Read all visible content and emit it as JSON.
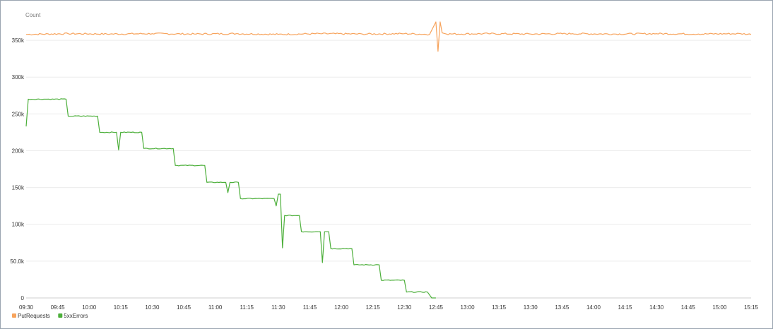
{
  "chart_data": {
    "type": "line",
    "ylabel": "Count",
    "ylim": [
      0,
      375000
    ],
    "y_ticks": [
      "0",
      "50.0k",
      "100k",
      "150k",
      "200k",
      "250k",
      "300k",
      "350k"
    ],
    "x_ticks": [
      "09:30",
      "09:45",
      "10:00",
      "10:15",
      "10:30",
      "10:45",
      "11:00",
      "11:15",
      "11:30",
      "11:45",
      "12:00",
      "12:15",
      "12:30",
      "12:45",
      "13:00",
      "13:15",
      "13:30",
      "13:45",
      "14:00",
      "14:15",
      "14:30",
      "14:45",
      "15:00",
      "15:15"
    ],
    "x_unit": "minutes",
    "grid": true,
    "legend_position": "bottom-left",
    "series": [
      {
        "name": "PutRequests",
        "color": "#f7a35c",
        "points": [
          [
            570,
            358000
          ],
          [
            590,
            359000
          ],
          [
            610,
            358500
          ],
          [
            630,
            359000
          ],
          [
            650,
            358500
          ],
          [
            670,
            359000
          ],
          [
            690,
            358000
          ],
          [
            710,
            359000
          ],
          [
            730,
            358500
          ],
          [
            750,
            359000
          ],
          [
            762,
            358000
          ],
          [
            765,
            375000
          ],
          [
            766,
            335000
          ],
          [
            767,
            375000
          ],
          [
            768,
            360000
          ],
          [
            770,
            358500
          ],
          [
            790,
            359000
          ],
          [
            810,
            358500
          ],
          [
            830,
            359000
          ],
          [
            850,
            358500
          ],
          [
            870,
            359000
          ],
          [
            890,
            358500
          ],
          [
            910,
            359000
          ],
          [
            915,
            358000
          ]
        ]
      },
      {
        "name": "5xxErrors",
        "color": "#4caf3a",
        "points": [
          [
            570,
            233000
          ],
          [
            571,
            270000
          ],
          [
            580,
            270000
          ],
          [
            589,
            270000
          ],
          [
            590,
            247000
          ],
          [
            604,
            247000
          ],
          [
            605,
            225000
          ],
          [
            613,
            225000
          ],
          [
            614,
            201000
          ],
          [
            615,
            225000
          ],
          [
            625,
            225000
          ],
          [
            626,
            203000
          ],
          [
            640,
            203000
          ],
          [
            641,
            180000
          ],
          [
            655,
            180000
          ],
          [
            656,
            157000
          ],
          [
            665,
            157000
          ],
          [
            666,
            143000
          ],
          [
            667,
            157000
          ],
          [
            671,
            157000
          ],
          [
            672,
            135000
          ],
          [
            688,
            135000
          ],
          [
            689,
            125000
          ],
          [
            690,
            141000
          ],
          [
            691,
            141000
          ],
          [
            692,
            68000
          ],
          [
            693,
            112000
          ],
          [
            700,
            112000
          ],
          [
            701,
            90000
          ],
          [
            710,
            90000
          ],
          [
            711,
            48000
          ],
          [
            712,
            90000
          ],
          [
            714,
            90000
          ],
          [
            715,
            67000
          ],
          [
            725,
            67000
          ],
          [
            726,
            45000
          ],
          [
            738,
            45000
          ],
          [
            739,
            24000
          ],
          [
            750,
            24000
          ],
          [
            751,
            8000
          ],
          [
            761,
            8000
          ],
          [
            763,
            0
          ],
          [
            765,
            0
          ]
        ]
      }
    ]
  }
}
